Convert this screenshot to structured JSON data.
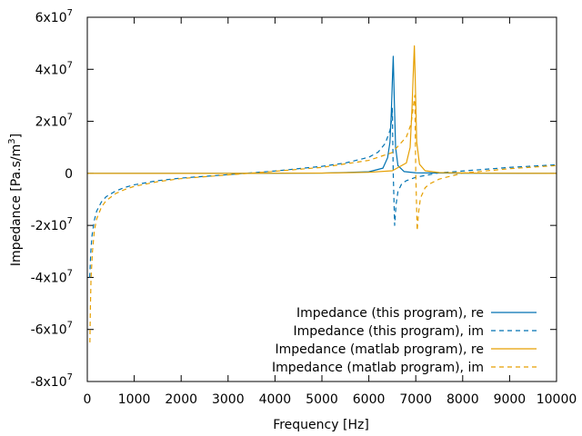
{
  "chart_data": {
    "type": "line",
    "title": "",
    "xlabel": "Frequency [Hz]",
    "ylabel_main": "Impedance [Pa.s/m",
    "ylabel_sup": "3",
    "ylabel_end": "]",
    "xlim": [
      0,
      10000
    ],
    "ylim": [
      -80000000,
      60000000
    ],
    "x_ticks": [
      {
        "value": 0,
        "label": "0"
      },
      {
        "value": 1000,
        "label": "1000"
      },
      {
        "value": 2000,
        "label": "2000"
      },
      {
        "value": 3000,
        "label": "3000"
      },
      {
        "value": 4000,
        "label": "4000"
      },
      {
        "value": 5000,
        "label": "5000"
      },
      {
        "value": 6000,
        "label": "6000"
      },
      {
        "value": 7000,
        "label": "7000"
      },
      {
        "value": 8000,
        "label": "8000"
      },
      {
        "value": 9000,
        "label": "9000"
      },
      {
        "value": 10000,
        "label": "10000"
      }
    ],
    "y_ticks": [
      {
        "value": 60000000,
        "mantissa": "6x10",
        "exp": "7"
      },
      {
        "value": 40000000,
        "mantissa": "4x10",
        "exp": "7"
      },
      {
        "value": 20000000,
        "mantissa": "2x10",
        "exp": "7"
      },
      {
        "value": 0,
        "mantissa": "0",
        "exp": ""
      },
      {
        "value": -20000000,
        "mantissa": "-2x10",
        "exp": "7"
      },
      {
        "value": -40000000,
        "mantissa": "-4x10",
        "exp": "7"
      },
      {
        "value": -60000000,
        "mantissa": "-6x10",
        "exp": "7"
      },
      {
        "value": -80000000,
        "mantissa": "-8x10",
        "exp": "7"
      }
    ],
    "legend_position": "bottom-right",
    "series": [
      {
        "name": "Impedance (this program), re",
        "color": "#0072b2",
        "dash": "solid",
        "x": [
          0,
          3000,
          5000,
          6000,
          6300,
          6400,
          6450,
          6480,
          6500,
          6520,
          6540,
          6570,
          6620,
          6750,
          7000,
          8000,
          10000
        ],
        "y": [
          0,
          0,
          100000,
          600000,
          2000000,
          6000000,
          12000000,
          24000000,
          35000000,
          45000000,
          30000000,
          10000000,
          3000000,
          700000,
          200000,
          50000,
          0
        ]
      },
      {
        "name": "Impedance (this program), im",
        "color": "#0072b2",
        "dash": "dashed",
        "x": [
          50,
          60,
          75,
          100,
          150,
          200,
          300,
          400,
          600,
          800,
          1000,
          1500,
          2000,
          3000,
          4000,
          5000,
          5500,
          6000,
          6200,
          6350,
          6450,
          6490,
          6500,
          6520,
          6550,
          6580,
          6620,
          6700,
          6800,
          7000,
          7500,
          8000,
          9000,
          10000
        ],
        "y": [
          -40000000,
          -36000000,
          -30000000,
          -24000000,
          -18000000,
          -14500000,
          -11000000,
          -9000000,
          -6800000,
          -5400000,
          -4400000,
          -2800000,
          -1800000,
          -500000,
          900000,
          2700000,
          4000000,
          6200000,
          8200000,
          11500000,
          16500000,
          21000000,
          25000000,
          0,
          -20000000,
          -12000000,
          -7000000,
          -4000000,
          -2800000,
          -1500000,
          200000,
          900000,
          2300000,
          3300000
        ]
      },
      {
        "name": "Impedance (matlab program), re",
        "color": "#e69f00",
        "dash": "solid",
        "x": [
          0,
          3000,
          5000,
          6000,
          6500,
          6800,
          6880,
          6920,
          6950,
          6970,
          6990,
          7020,
          7080,
          7200,
          7500,
          8500,
          10000
        ],
        "y": [
          0,
          0,
          100000,
          400000,
          1000000,
          4000000,
          10000000,
          25000000,
          40000000,
          49000000,
          35000000,
          12000000,
          3500000,
          1000000,
          300000,
          50000,
          0
        ]
      },
      {
        "name": "Impedance (matlab program), im",
        "color": "#e69f00",
        "dash": "dashed",
        "x": [
          55,
          65,
          80,
          110,
          150,
          200,
          300,
          400,
          600,
          800,
          1000,
          1500,
          2000,
          3000,
          4000,
          5000,
          6000,
          6500,
          6800,
          6900,
          6950,
          6980,
          7000,
          7030,
          7060,
          7100,
          7200,
          7300,
          7500,
          8000,
          9000,
          10000
        ],
        "y": [
          -65000000,
          -52000000,
          -40000000,
          -30000000,
          -22000000,
          -17500000,
          -13000000,
          -10500000,
          -7800000,
          -6200000,
          -5000000,
          -3200000,
          -2000000,
          -600000,
          800000,
          2300000,
          5000000,
          8000000,
          14000000,
          19000000,
          26000000,
          30000000,
          0,
          -22000000,
          -15000000,
          -9500000,
          -5500000,
          -4000000,
          -2200000,
          100000,
          1800000,
          3000000
        ]
      }
    ]
  }
}
